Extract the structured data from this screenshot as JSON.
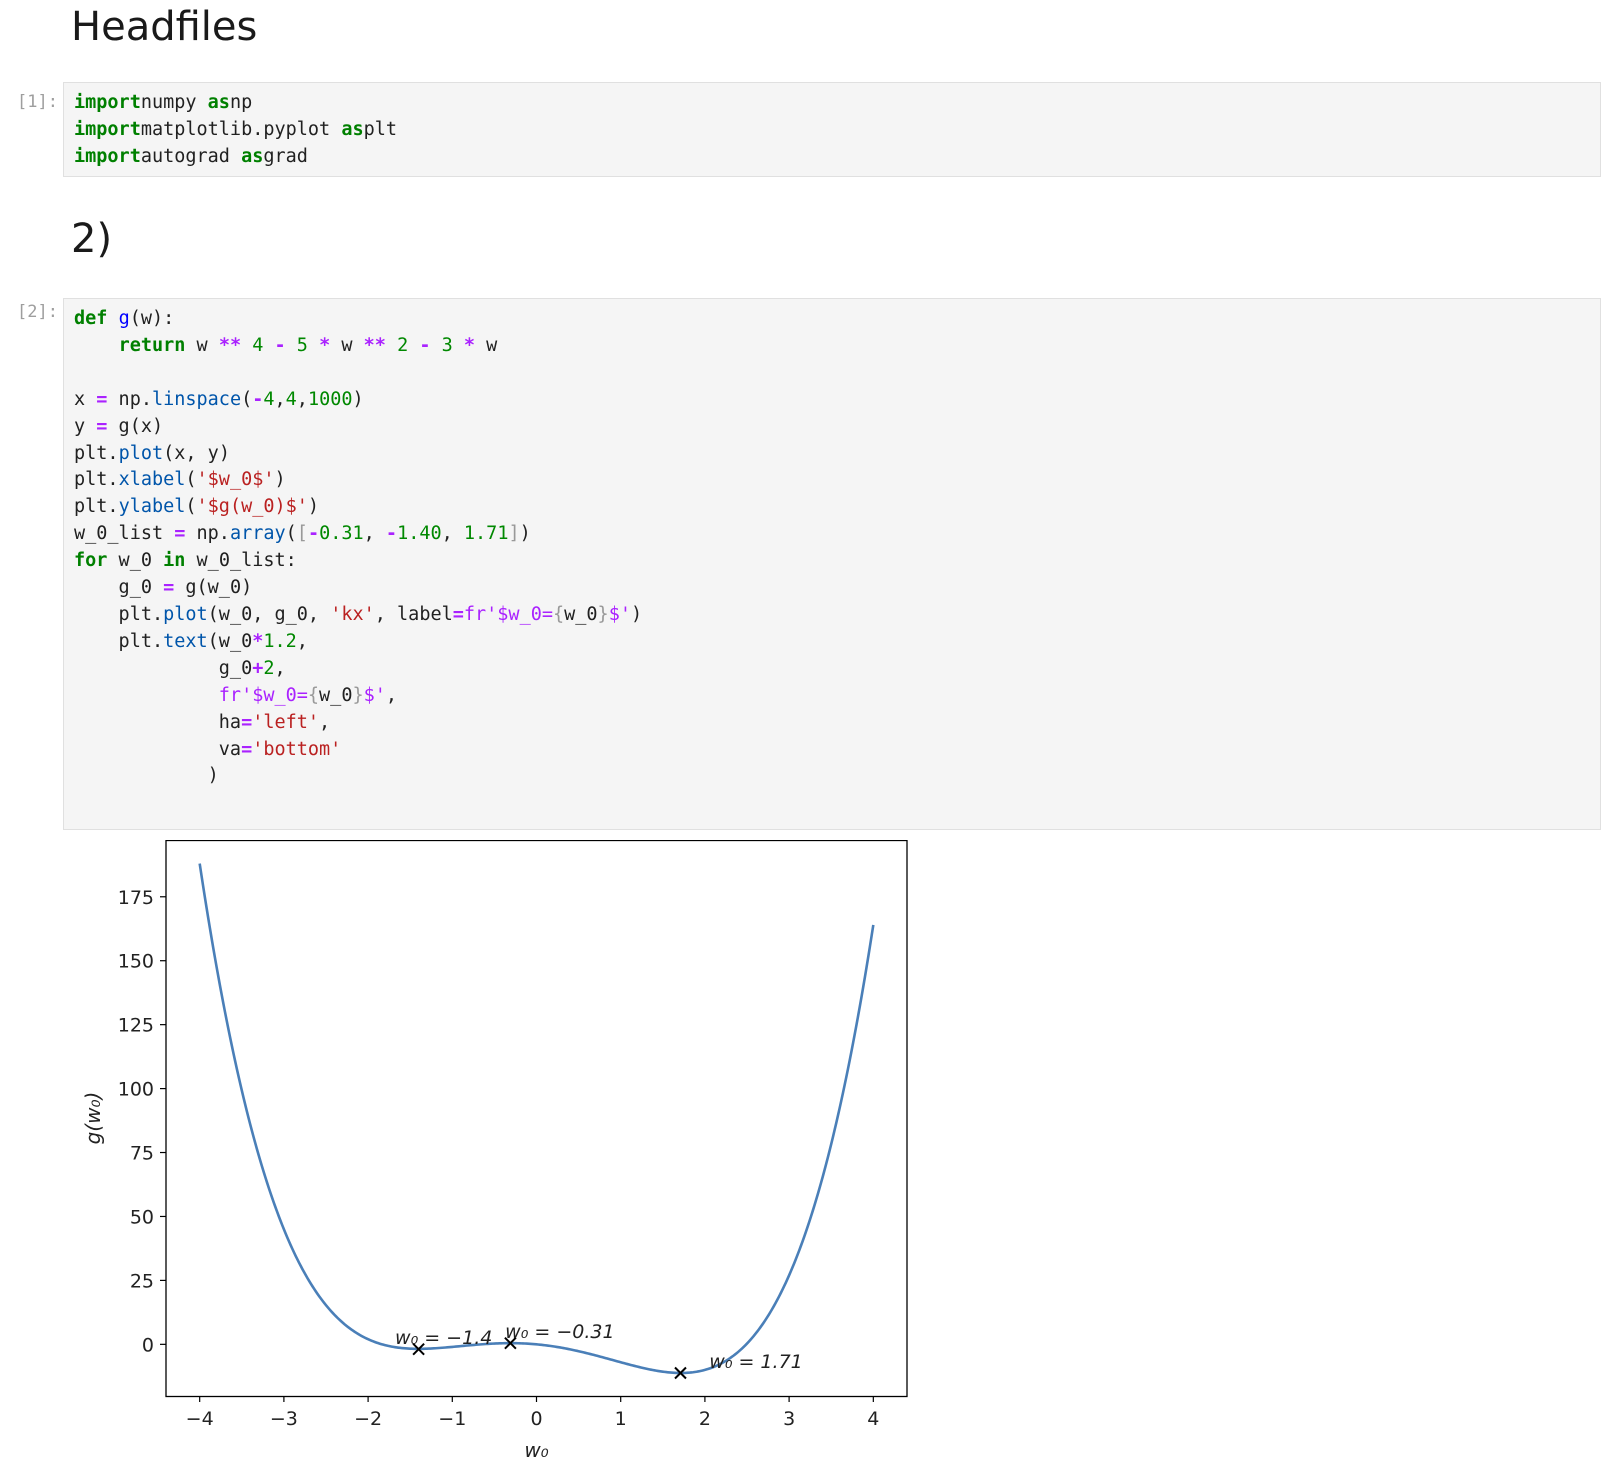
{
  "headings": {
    "headfiles": "Headfiles",
    "section2": "2)"
  },
  "cells": [
    {
      "prompt": "[1]:",
      "lines": [
        [
          [
            "kw",
            "import"
          ],
          [
            "",
            "numpy "
          ],
          [
            "kw",
            "as"
          ],
          [
            "",
            "np"
          ]
        ],
        [
          [
            "kw",
            "import"
          ],
          [
            "",
            "matplotlib.pyplot "
          ],
          [
            "kw",
            "as"
          ],
          [
            "",
            "plt"
          ]
        ],
        [
          [
            "kw",
            "import"
          ],
          [
            "",
            "autograd "
          ],
          [
            "kw",
            "as"
          ],
          [
            "",
            "grad"
          ]
        ]
      ]
    },
    {
      "prompt": "[2]:",
      "lines": [
        [
          [
            "kw",
            "def"
          ],
          [
            "",
            " "
          ],
          [
            "fn",
            "g"
          ],
          [
            "",
            "(w):"
          ]
        ],
        [
          [
            "",
            "    "
          ],
          [
            "kw",
            "return"
          ],
          [
            "",
            " w "
          ],
          [
            "op",
            "**"
          ],
          [
            "",
            " "
          ],
          [
            "num",
            "4"
          ],
          [
            "",
            " "
          ],
          [
            "op",
            "-"
          ],
          [
            "",
            " "
          ],
          [
            "num",
            "5"
          ],
          [
            "",
            " "
          ],
          [
            "op",
            "*"
          ],
          [
            "",
            " w "
          ],
          [
            "op",
            "**"
          ],
          [
            "",
            " "
          ],
          [
            "num",
            "2"
          ],
          [
            "",
            " "
          ],
          [
            "op",
            "-"
          ],
          [
            "",
            " "
          ],
          [
            "num",
            "3"
          ],
          [
            "",
            " "
          ],
          [
            "op",
            "*"
          ],
          [
            "",
            " w"
          ]
        ],
        [],
        [
          [
            "",
            "x "
          ],
          [
            "op",
            "="
          ],
          [
            "",
            " np."
          ],
          [
            "at",
            "linspace"
          ],
          [
            "",
            "("
          ],
          [
            "op",
            "-"
          ],
          [
            "num",
            "4"
          ],
          [
            "",
            ","
          ],
          [
            "num",
            "4"
          ],
          [
            "",
            ","
          ],
          [
            "num",
            "1000"
          ],
          [
            "",
            ")"
          ]
        ],
        [
          [
            "",
            "y "
          ],
          [
            "op",
            "="
          ],
          [
            "",
            " g(x)"
          ]
        ],
        [
          [
            "",
            "plt."
          ],
          [
            "at",
            "plot"
          ],
          [
            "",
            "(x, y)"
          ]
        ],
        [
          [
            "",
            "plt."
          ],
          [
            "at",
            "xlabel"
          ],
          [
            "",
            "("
          ],
          [
            "str",
            "'$w_0$'"
          ],
          [
            "",
            ")"
          ]
        ],
        [
          [
            "",
            "plt."
          ],
          [
            "at",
            "ylabel"
          ],
          [
            "",
            "("
          ],
          [
            "str",
            "'$g(w_0)$'"
          ],
          [
            "",
            ")"
          ]
        ],
        [
          [
            "",
            "w_0_list "
          ],
          [
            "op",
            "="
          ],
          [
            "",
            " np."
          ],
          [
            "at",
            "array"
          ],
          [
            "",
            "("
          ],
          [
            "br",
            "["
          ],
          [
            "op",
            "-"
          ],
          [
            "num",
            "0.31"
          ],
          [
            "",
            ", "
          ],
          [
            "op",
            "-"
          ],
          [
            "num",
            "1.40"
          ],
          [
            "",
            ", "
          ],
          [
            "num",
            "1.71"
          ],
          [
            "br",
            "]"
          ],
          [
            "",
            ")"
          ]
        ],
        [
          [
            "kw",
            "for"
          ],
          [
            "",
            " w_0 "
          ],
          [
            "kw",
            "in"
          ],
          [
            "",
            " w_0_list:"
          ]
        ],
        [
          [
            "",
            "    g_0 "
          ],
          [
            "op",
            "="
          ],
          [
            "",
            " g(w_0)"
          ]
        ],
        [
          [
            "",
            "    plt."
          ],
          [
            "at",
            "plot"
          ],
          [
            "",
            "(w_0, g_0, "
          ],
          [
            "str",
            "'kx'"
          ],
          [
            "",
            ", label"
          ],
          [
            "op",
            "="
          ],
          [
            "fs",
            "fr'$w_0="
          ],
          [
            "br",
            "{"
          ],
          [
            "",
            "w_0"
          ],
          [
            "br",
            "}"
          ],
          [
            "fs",
            "$'"
          ],
          [
            "",
            ")"
          ]
        ],
        [
          [
            "",
            "    plt."
          ],
          [
            "at",
            "text"
          ],
          [
            "",
            "(w_0"
          ],
          [
            "op",
            "*"
          ],
          [
            "num",
            "1.2"
          ],
          [
            "",
            ","
          ]
        ],
        [
          [
            "",
            "             g_0"
          ],
          [
            "op",
            "+"
          ],
          [
            "num",
            "2"
          ],
          [
            "",
            ","
          ]
        ],
        [
          [
            "",
            "             "
          ],
          [
            "fs",
            "fr'$w_0="
          ],
          [
            "br",
            "{"
          ],
          [
            "",
            "w_0"
          ],
          [
            "br",
            "}"
          ],
          [
            "fs",
            "$'"
          ],
          [
            "",
            ","
          ]
        ],
        [
          [
            "",
            "             ha"
          ],
          [
            "op",
            "="
          ],
          [
            "str",
            "'left'"
          ],
          [
            "",
            ","
          ]
        ],
        [
          [
            "",
            "             va"
          ],
          [
            "op",
            "="
          ],
          [
            "str",
            "'bottom'"
          ]
        ],
        [
          [
            "",
            "            )"
          ]
        ]
      ]
    }
  ],
  "chart_data": {
    "type": "line",
    "function": "w ** 4 - 5 * w ** 2 - 3 * w",
    "xlabel": "w₀",
    "ylabel": "g(w₀)",
    "xlim": [
      -4.4,
      4.4
    ],
    "ylim": [
      -20.2,
      197.2
    ],
    "xticks": [
      -4,
      -3,
      -2,
      -1,
      0,
      1,
      2,
      3,
      4
    ],
    "xtick_labels": [
      "−4",
      "−3",
      "−2",
      "−1",
      "0",
      "1",
      "2",
      "3",
      "4"
    ],
    "yticks": [
      0,
      25,
      50,
      75,
      100,
      125,
      150,
      175
    ],
    "ytick_labels": [
      "0",
      "25",
      "50",
      "75",
      "100",
      "125",
      "150",
      "175"
    ],
    "line_color": "#4a7fb8",
    "series": [
      {
        "x": [
          -4,
          -3.6,
          -3.2,
          -2.8,
          -2.4,
          -2.0,
          -1.6,
          -1.4,
          -1.2,
          -0.8,
          -0.31,
          0,
          0.4,
          0.8,
          1.2,
          1.71,
          2.0,
          2.4,
          2.8,
          3.2,
          3.6,
          4
        ],
        "y": [
          188,
          113.2,
          58.3,
          22.6,
          3.6,
          -2.0,
          -1.2,
          -1.9,
          -1.7,
          -0.4,
          0.46,
          0,
          -1.97,
          -5.19,
          -8.67,
          -11.2,
          -10.0,
          -2.8,
          13.0,
          43.1,
          90.1,
          164
        ]
      }
    ],
    "markers": [
      {
        "x": -0.31,
        "y": 0.46,
        "label": "w₀ = −0.31"
      },
      {
        "x": -1.4,
        "y": -1.9,
        "label": "w₀ = −1.4"
      },
      {
        "x": 1.71,
        "y": -11.2,
        "label": "w₀ = 1.71"
      }
    ]
  }
}
